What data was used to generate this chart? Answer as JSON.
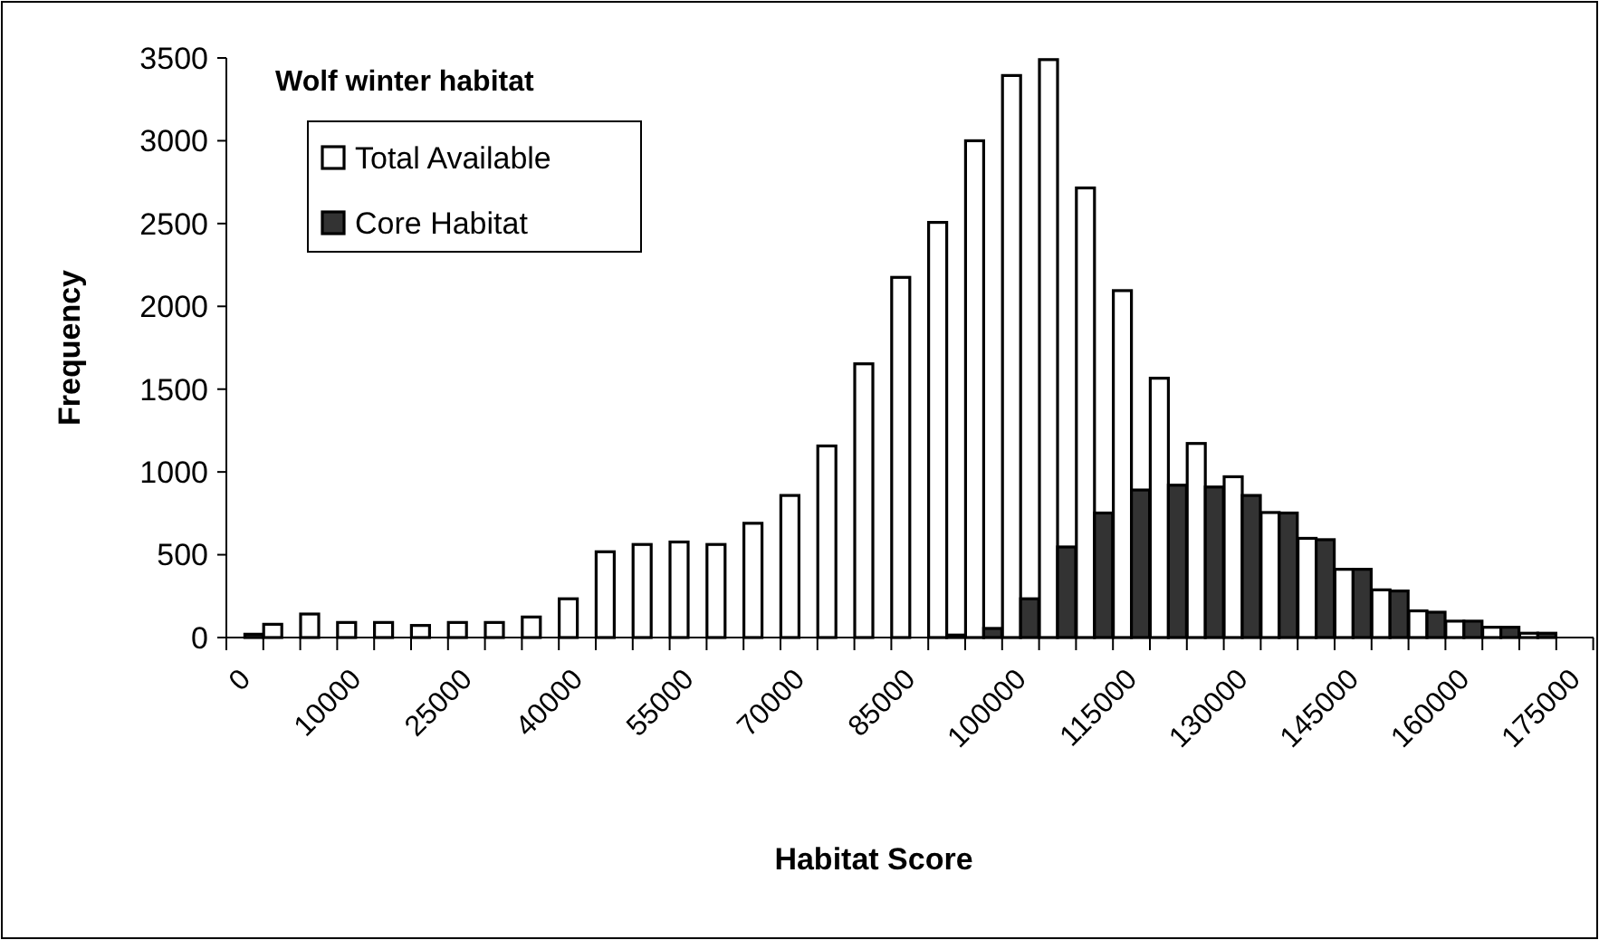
{
  "chart_data": {
    "type": "bar",
    "title": "Wolf winter habitat",
    "xlabel": "Habitat Score",
    "ylabel": "Frequency",
    "categories": [
      "0",
      null,
      null,
      "10000",
      null,
      null,
      "25000",
      null,
      null,
      "40000",
      null,
      null,
      "55000",
      null,
      null,
      "70000",
      null,
      null,
      "85000",
      null,
      null,
      "100000",
      null,
      null,
      "115000",
      null,
      null,
      "130000",
      null,
      null,
      "145000",
      null,
      null,
      "160000",
      null,
      null,
      "175000"
    ],
    "series": [
      {
        "name": "Total Available",
        "color": "#ffffff",
        "values": [
          0,
          80,
          142,
          91,
          91,
          73,
          91,
          91,
          124,
          234,
          518,
          562,
          577,
          562,
          690,
          858,
          1157,
          1653,
          2175,
          2507,
          3000,
          3394,
          3490,
          2715,
          2095,
          1566,
          1172,
          971,
          755,
          599,
          412,
          288,
          161,
          99,
          62,
          26,
          0
        ]
      },
      {
        "name": "Core Habitat",
        "color": "#333333",
        "values": [
          20,
          0,
          0,
          0,
          0,
          0,
          0,
          0,
          0,
          0,
          0,
          0,
          0,
          0,
          0,
          0,
          0,
          0,
          0,
          15,
          55,
          234,
          547,
          752,
          891,
          920,
          909,
          858,
          752,
          591,
          412,
          281,
          153,
          99,
          62,
          26,
          0
        ]
      }
    ],
    "ylim": [
      0,
      3500
    ],
    "yticks": [
      0,
      500,
      1000,
      1500,
      2000,
      2500,
      3000,
      3500
    ],
    "grid": false,
    "legend": "top left"
  }
}
